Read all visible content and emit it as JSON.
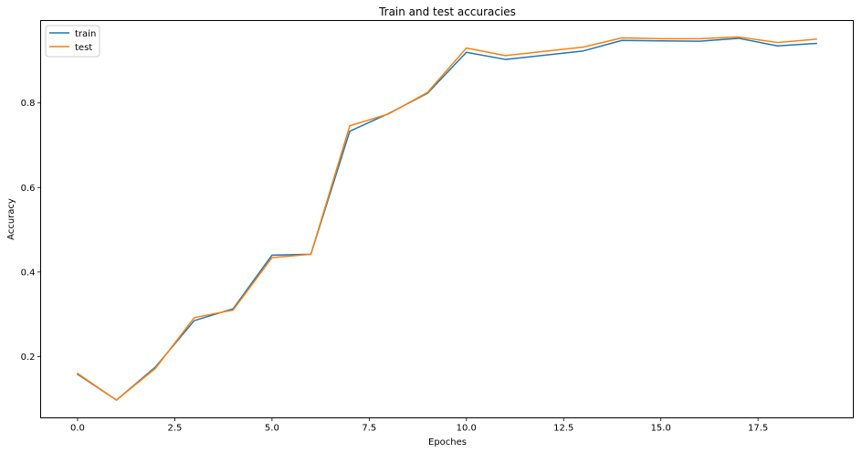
{
  "chart_data": {
    "type": "line",
    "title": "Train and test accuracies",
    "xlabel": "Epoches",
    "ylabel": "Accuracy",
    "xlim": [
      -0.95,
      19.95
    ],
    "ylim": [
      0.055,
      0.995
    ],
    "xticks": [
      0,
      2.5,
      5,
      7.5,
      10,
      12.5,
      15,
      17.5
    ],
    "xtick_labels": [
      "0.0",
      "2.5",
      "5.0",
      "7.5",
      "10.0",
      "12.5",
      "15.0",
      "17.5"
    ],
    "yticks": [
      0.2,
      0.4,
      0.6,
      0.8
    ],
    "ytick_labels": [
      "0.2",
      "0.4",
      "0.6",
      "0.8"
    ],
    "grid": false,
    "legend_position": "top-left",
    "x": [
      0,
      1,
      2,
      3,
      4,
      5,
      6,
      7,
      8,
      9,
      10,
      11,
      12,
      13,
      14,
      15,
      16,
      17,
      18,
      19
    ],
    "series": [
      {
        "name": "train",
        "color": "#1f77b4",
        "values": [
          0.158,
          0.097,
          0.175,
          0.285,
          0.313,
          0.44,
          0.442,
          0.733,
          0.775,
          0.823,
          0.92,
          0.903,
          0.913,
          0.923,
          0.948,
          0.947,
          0.946,
          0.953,
          0.935,
          0.941
        ]
      },
      {
        "name": "test",
        "color": "#ff7f0e",
        "values": [
          0.16,
          0.097,
          0.172,
          0.292,
          0.31,
          0.434,
          0.442,
          0.746,
          0.774,
          0.825,
          0.93,
          0.912,
          0.922,
          0.932,
          0.954,
          0.952,
          0.952,
          0.956,
          0.943,
          0.951
        ]
      }
    ]
  }
}
